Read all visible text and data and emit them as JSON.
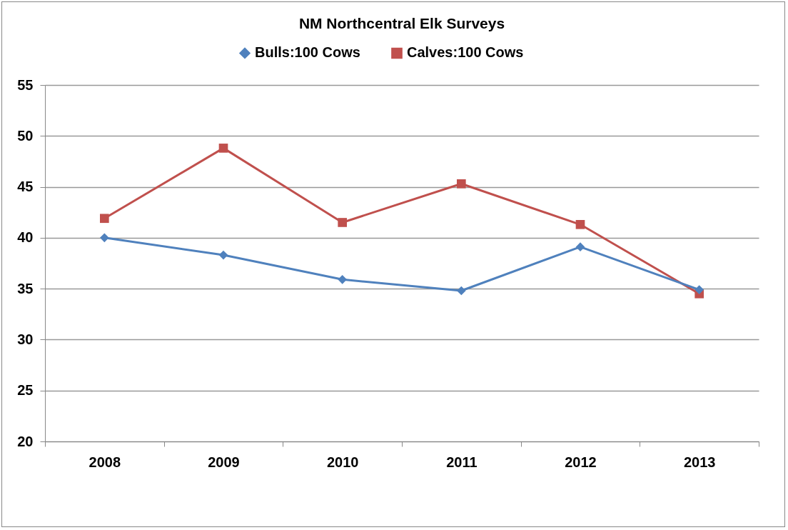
{
  "chart_data": {
    "type": "line",
    "title": "NM Northcentral Elk Surveys",
    "categories": [
      "2008",
      "2009",
      "2010",
      "2011",
      "2012",
      "2013"
    ],
    "series": [
      {
        "name": "Bulls:100 Cows",
        "color": "#4f81bd",
        "marker": "diamond",
        "values": [
          40.0,
          38.3,
          35.9,
          34.8,
          39.1,
          34.9
        ]
      },
      {
        "name": "Calves:100 Cows",
        "color": "#c0504d",
        "marker": "square",
        "values": [
          41.9,
          48.8,
          41.5,
          45.3,
          41.3,
          34.5
        ]
      }
    ],
    "ylim": [
      20,
      55
    ],
    "yticks": [
      20,
      25,
      30,
      35,
      40,
      45,
      50,
      55
    ],
    "grid": "y",
    "legend": "top",
    "line_style": "solid"
  }
}
